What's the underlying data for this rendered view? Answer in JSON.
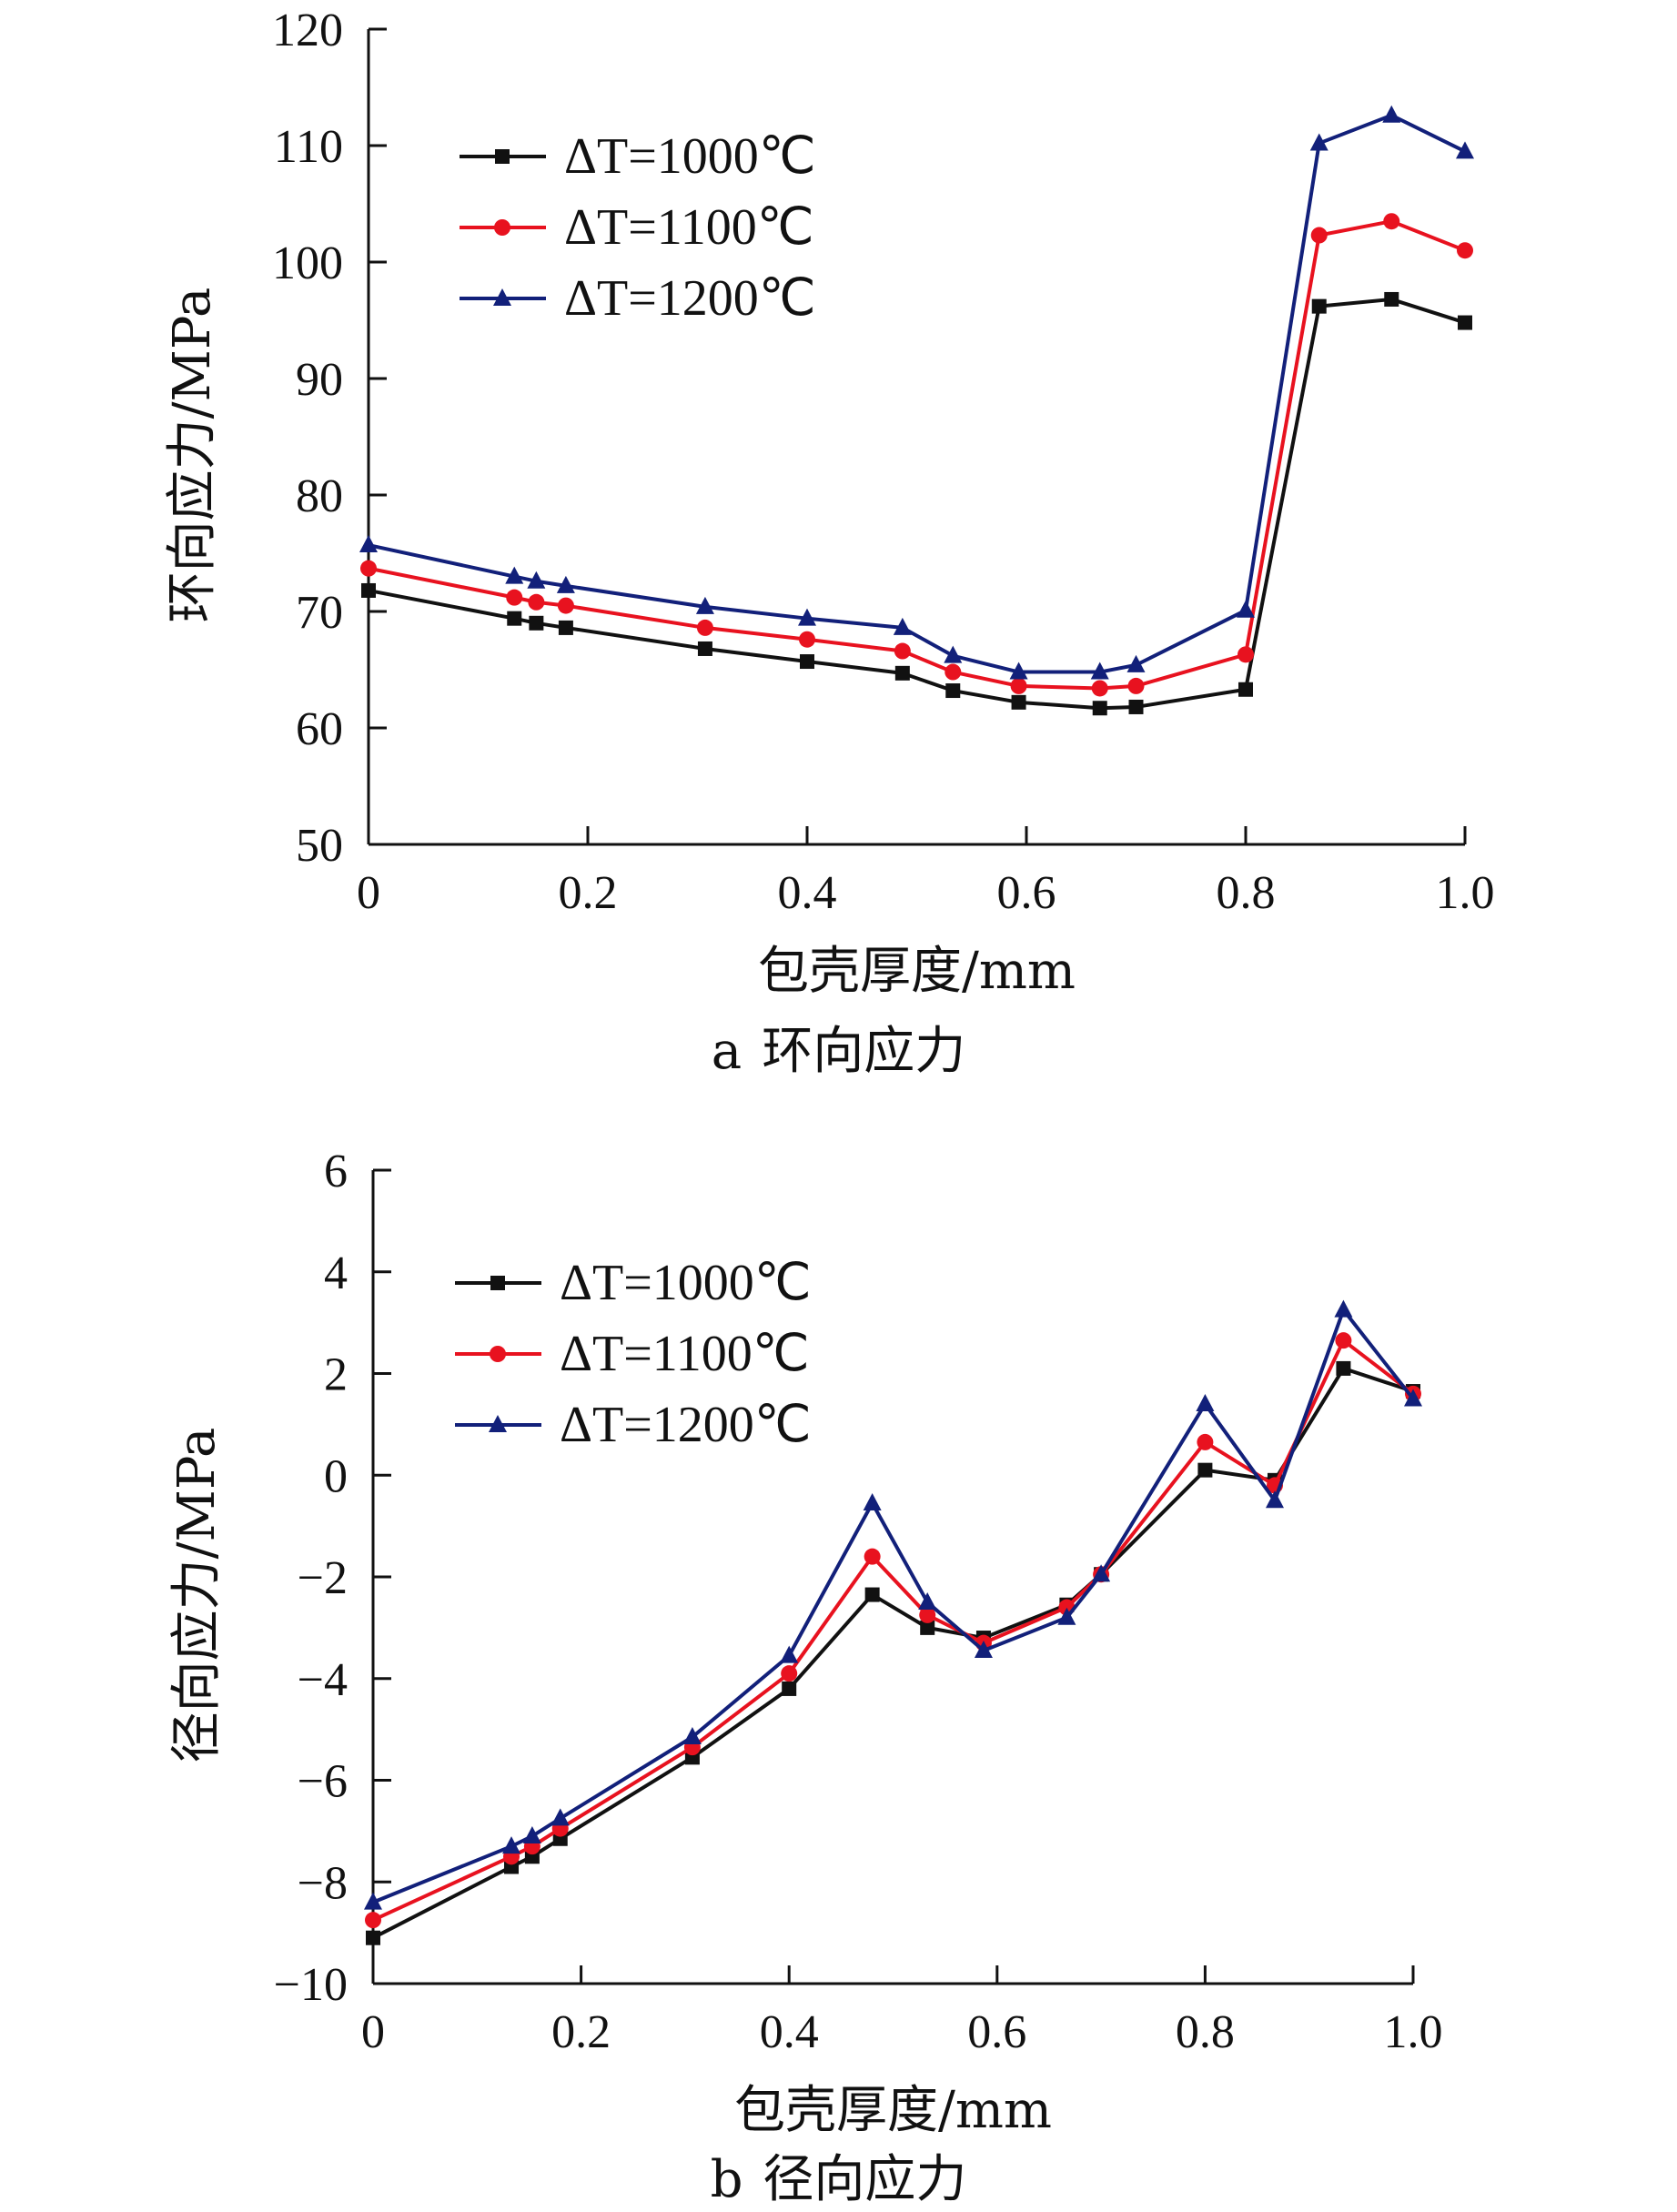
{
  "captions": {
    "a_letter": "a",
    "a_text": "环向应力",
    "b_letter": "b",
    "b_text": "径向应力"
  },
  "colors": {
    "series_1000": "#111111",
    "series_1100": "#e8121f",
    "series_1200": "#12207a",
    "axis": "#111111"
  },
  "chart_data": [
    {
      "type": "line",
      "panel": "a",
      "xlabel": "包壳厚度/mm",
      "ylabel": "环向应力/MPa",
      "xlim": [
        0,
        1.0
      ],
      "ylim": [
        50,
        120
      ],
      "xticks": [
        "0",
        "0.2",
        "0.4",
        "0.6",
        "0.8",
        "1.0"
      ],
      "yticks": [
        "50",
        "60",
        "70",
        "80",
        "90",
        "100",
        "110",
        "120"
      ],
      "grid": false,
      "legend_position": "top-left",
      "x": [
        0,
        0.133,
        0.153,
        0.18,
        0.307,
        0.4,
        0.487,
        0.533,
        0.593,
        0.667,
        0.7,
        0.8,
        0.867,
        0.933,
        1.0
      ],
      "series": [
        {
          "name": "ΔT=1000℃",
          "marker": "square",
          "values": [
            71.8,
            69.4,
            69.0,
            68.6,
            66.8,
            65.7,
            64.7,
            63.2,
            62.2,
            61.7,
            61.8,
            63.3,
            96.2,
            96.8,
            94.8
          ]
        },
        {
          "name": "ΔT=1100℃",
          "marker": "circle",
          "values": [
            73.7,
            71.2,
            70.8,
            70.5,
            68.6,
            67.6,
            66.6,
            64.8,
            63.6,
            63.4,
            63.6,
            66.3,
            102.3,
            103.5,
            101.0
          ]
        },
        {
          "name": "ΔT=1200℃",
          "marker": "triangle",
          "values": [
            75.7,
            73.0,
            72.6,
            72.2,
            70.4,
            69.4,
            68.6,
            66.2,
            64.8,
            64.8,
            65.4,
            70.1,
            110.2,
            112.6,
            109.5
          ]
        }
      ]
    },
    {
      "type": "line",
      "panel": "b",
      "xlabel": "包壳厚度/mm",
      "ylabel": "径向应力/MPa",
      "xlim": [
        0,
        1.0
      ],
      "ylim": [
        -10,
        6
      ],
      "xticks": [
        "0",
        "0.2",
        "0.4",
        "0.6",
        "0.8",
        "1.0"
      ],
      "yticks": [
        "−10",
        "−8",
        "−6",
        "−4",
        "−2",
        "0",
        "2",
        "4",
        "6"
      ],
      "grid": false,
      "legend_position": "top-left",
      "x": [
        0,
        0.133,
        0.153,
        0.18,
        0.307,
        0.4,
        0.48,
        0.533,
        0.587,
        0.667,
        0.7,
        0.8,
        0.867,
        0.933,
        1.0
      ],
      "series": [
        {
          "name": "ΔT=1000℃",
          "marker": "square",
          "values": [
            -9.1,
            -7.7,
            -7.5,
            -7.15,
            -5.55,
            -4.2,
            -2.35,
            -3.0,
            -3.2,
            -2.55,
            -1.95,
            0.1,
            -0.1,
            2.1,
            1.65
          ]
        },
        {
          "name": "ΔT=1100℃",
          "marker": "circle",
          "values": [
            -8.75,
            -7.5,
            -7.3,
            -6.95,
            -5.35,
            -3.9,
            -1.6,
            -2.75,
            -3.3,
            -2.6,
            -1.95,
            0.65,
            -0.2,
            2.65,
            1.6
          ]
        },
        {
          "name": "ΔT=1200℃",
          "marker": "triangle",
          "values": [
            -8.4,
            -7.3,
            -7.1,
            -6.75,
            -5.15,
            -3.55,
            -0.55,
            -2.5,
            -3.45,
            -2.8,
            -1.95,
            1.4,
            -0.5,
            3.25,
            1.5
          ]
        }
      ]
    }
  ]
}
